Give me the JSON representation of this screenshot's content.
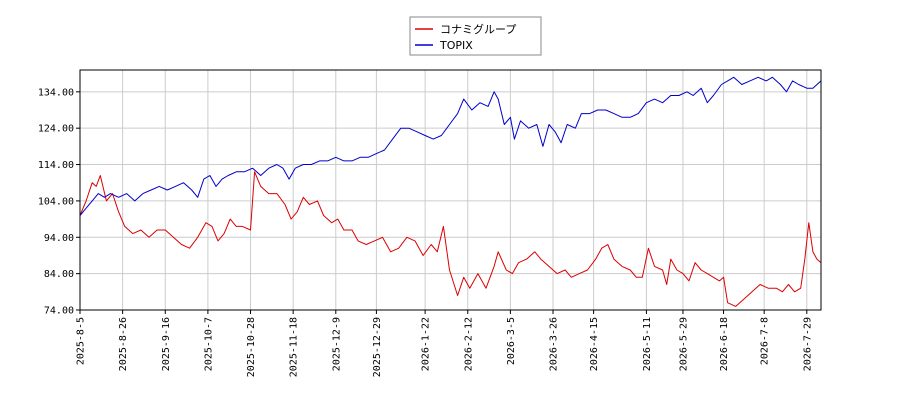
{
  "chart_data": {
    "type": "line",
    "title": "",
    "xlabel": "",
    "ylabel": "",
    "ylim": [
      74,
      140
    ],
    "yticks": [
      74,
      84,
      94,
      104,
      114,
      124,
      134
    ],
    "ytick_labels": [
      "74.00",
      "84.00",
      "94.00",
      "104.00",
      "114.00",
      "124.00",
      "134.00"
    ],
    "xticks": [
      "2025-8-5",
      "2025-8-26",
      "2025-9-16",
      "2025-10-7",
      "2025-10-28",
      "2025-11-18",
      "2025-12-9",
      "2025-12-29",
      "2026-1-22",
      "2026-2-12",
      "2026-3-5",
      "2026-3-26",
      "2026-4-15",
      "2026-5-11",
      "2026-5-29",
      "2026-6-18",
      "2026-7-8",
      "2026-7-29"
    ],
    "x_range": [
      "2025-8-5",
      "2026-8-5"
    ],
    "grid": true,
    "legend_position": "top-center",
    "series": [
      {
        "name": "コナミグループ",
        "color": "#dd0000",
        "points": [
          [
            "2025-8-5",
            100.0
          ],
          [
            "2025-8-8",
            104.0
          ],
          [
            "2025-8-11",
            109.0
          ],
          [
            "2025-8-13",
            108.0
          ],
          [
            "2025-8-15",
            111.0
          ],
          [
            "2025-8-18",
            104.0
          ],
          [
            "2025-8-21",
            106.0
          ],
          [
            "2025-8-24",
            101.0
          ],
          [
            "2025-8-27",
            97.0
          ],
          [
            "2025-8-31",
            95.0
          ],
          [
            "2025-9-4",
            96.0
          ],
          [
            "2025-9-8",
            94.0
          ],
          [
            "2025-9-12",
            96.0
          ],
          [
            "2025-9-16",
            96.0
          ],
          [
            "2025-9-20",
            94.0
          ],
          [
            "2025-9-24",
            92.0
          ],
          [
            "2025-9-28",
            91.0
          ],
          [
            "2025-10-2",
            94.0
          ],
          [
            "2025-10-6",
            98.0
          ],
          [
            "2025-10-9",
            97.0
          ],
          [
            "2025-10-12",
            93.0
          ],
          [
            "2025-10-15",
            95.0
          ],
          [
            "2025-10-18",
            99.0
          ],
          [
            "2025-10-21",
            97.0
          ],
          [
            "2025-10-24",
            97.0
          ],
          [
            "2025-10-28",
            96.0
          ],
          [
            "2025-10-30",
            112.0
          ],
          [
            "2025-11-2",
            108.0
          ],
          [
            "2025-11-6",
            106.0
          ],
          [
            "2025-11-10",
            106.0
          ],
          [
            "2025-11-14",
            103.0
          ],
          [
            "2025-11-17",
            99.0
          ],
          [
            "2025-11-20",
            101.0
          ],
          [
            "2025-11-23",
            105.0
          ],
          [
            "2025-11-26",
            103.0
          ],
          [
            "2025-11-30",
            104.0
          ],
          [
            "2025-12-3",
            100.0
          ],
          [
            "2025-12-7",
            98.0
          ],
          [
            "2025-12-10",
            99.0
          ],
          [
            "2025-12-13",
            96.0
          ],
          [
            "2025-12-17",
            96.0
          ],
          [
            "2025-12-20",
            93.0
          ],
          [
            "2025-12-24",
            92.0
          ],
          [
            "2025-12-28",
            93.0
          ],
          [
            "2026-1-1",
            94.0
          ],
          [
            "2026-1-5",
            90.0
          ],
          [
            "2026-1-9",
            91.0
          ],
          [
            "2026-1-13",
            94.0
          ],
          [
            "2026-1-17",
            93.0
          ],
          [
            "2026-1-21",
            89.0
          ],
          [
            "2026-1-25",
            92.0
          ],
          [
            "2026-1-28",
            90.0
          ],
          [
            "2026-1-31",
            97.0
          ],
          [
            "2026-2-3",
            85.0
          ],
          [
            "2026-2-7",
            78.0
          ],
          [
            "2026-2-10",
            83.0
          ],
          [
            "2026-2-13",
            80.0
          ],
          [
            "2026-2-17",
            84.0
          ],
          [
            "2026-2-21",
            80.0
          ],
          [
            "2026-2-25",
            86.0
          ],
          [
            "2026-2-27",
            90.0
          ],
          [
            "2026-3-3",
            85.0
          ],
          [
            "2026-3-6",
            84.0
          ],
          [
            "2026-3-9",
            87.0
          ],
          [
            "2026-3-13",
            88.0
          ],
          [
            "2026-3-17",
            90.0
          ],
          [
            "2026-3-20",
            88.0
          ],
          [
            "2026-3-24",
            86.0
          ],
          [
            "2026-3-28",
            84.0
          ],
          [
            "2026-4-1",
            85.0
          ],
          [
            "2026-4-4",
            83.0
          ],
          [
            "2026-4-8",
            84.0
          ],
          [
            "2026-4-12",
            85.0
          ],
          [
            "2026-4-16",
            88.0
          ],
          [
            "2026-4-19",
            91.0
          ],
          [
            "2026-4-22",
            92.0
          ],
          [
            "2026-4-25",
            88.0
          ],
          [
            "2026-4-29",
            86.0
          ],
          [
            "2026-5-3",
            85.0
          ],
          [
            "2026-5-6",
            83.0
          ],
          [
            "2026-5-9",
            83.0
          ],
          [
            "2026-5-12",
            91.0
          ],
          [
            "2026-5-15",
            86.0
          ],
          [
            "2026-5-19",
            85.0
          ],
          [
            "2026-5-21",
            81.0
          ],
          [
            "2026-5-23",
            88.0
          ],
          [
            "2026-5-26",
            85.0
          ],
          [
            "2026-5-29",
            84.0
          ],
          [
            "2026-6-1",
            82.0
          ],
          [
            "2026-6-4",
            87.0
          ],
          [
            "2026-6-7",
            85.0
          ],
          [
            "2026-6-10",
            84.0
          ],
          [
            "2026-6-13",
            83.0
          ],
          [
            "2026-6-16",
            82.0
          ],
          [
            "2026-6-18",
            83.0
          ],
          [
            "2026-6-20",
            76.0
          ],
          [
            "2026-6-24",
            75.0
          ],
          [
            "2026-6-28",
            77.0
          ],
          [
            "2026-7-2",
            79.0
          ],
          [
            "2026-7-6",
            81.0
          ],
          [
            "2026-7-10",
            80.0
          ],
          [
            "2026-7-14",
            80.0
          ],
          [
            "2026-7-17",
            79.0
          ],
          [
            "2026-7-20",
            81.0
          ],
          [
            "2026-7-23",
            79.0
          ],
          [
            "2026-7-26",
            80.0
          ],
          [
            "2026-7-28",
            88.0
          ],
          [
            "2026-7-30",
            98.0
          ],
          [
            "2026-8-1",
            90.0
          ],
          [
            "2026-8-3",
            88.0
          ],
          [
            "2026-8-5",
            87.0
          ]
        ]
      },
      {
        "name": "TOPIX",
        "color": "#0000cc",
        "points": [
          [
            "2025-8-5",
            100.0
          ],
          [
            "2025-8-8",
            102.0
          ],
          [
            "2025-8-11",
            104.0
          ],
          [
            "2025-8-14",
            106.0
          ],
          [
            "2025-8-17",
            105.0
          ],
          [
            "2025-8-20",
            106.0
          ],
          [
            "2025-8-24",
            105.0
          ],
          [
            "2025-8-28",
            106.0
          ],
          [
            "2025-9-1",
            104.0
          ],
          [
            "2025-9-5",
            106.0
          ],
          [
            "2025-9-9",
            107.0
          ],
          [
            "2025-9-13",
            108.0
          ],
          [
            "2025-9-17",
            107.0
          ],
          [
            "2025-9-21",
            108.0
          ],
          [
            "2025-9-25",
            109.0
          ],
          [
            "2025-9-29",
            107.0
          ],
          [
            "2025-10-2",
            105.0
          ],
          [
            "2025-10-5",
            110.0
          ],
          [
            "2025-10-8",
            111.0
          ],
          [
            "2025-10-11",
            108.0
          ],
          [
            "2025-10-14",
            110.0
          ],
          [
            "2025-10-17",
            111.0
          ],
          [
            "2025-10-21",
            112.0
          ],
          [
            "2025-10-25",
            112.0
          ],
          [
            "2025-10-29",
            113.0
          ],
          [
            "2025-11-2",
            111.0
          ],
          [
            "2025-11-6",
            113.0
          ],
          [
            "2025-11-10",
            114.0
          ],
          [
            "2025-11-13",
            113.0
          ],
          [
            "2025-11-16",
            110.0
          ],
          [
            "2025-11-19",
            113.0
          ],
          [
            "2025-11-23",
            114.0
          ],
          [
            "2025-11-27",
            114.0
          ],
          [
            "2025-12-1",
            115.0
          ],
          [
            "2025-12-5",
            115.0
          ],
          [
            "2025-12-9",
            116.0
          ],
          [
            "2025-12-13",
            115.0
          ],
          [
            "2025-12-17",
            115.0
          ],
          [
            "2025-12-21",
            116.0
          ],
          [
            "2025-12-25",
            116.0
          ],
          [
            "2025-12-29",
            117.0
          ],
          [
            "2026-1-2",
            118.0
          ],
          [
            "2026-1-6",
            121.0
          ],
          [
            "2026-1-10",
            124.0
          ],
          [
            "2026-1-14",
            124.0
          ],
          [
            "2026-1-18",
            123.0
          ],
          [
            "2026-1-22",
            122.0
          ],
          [
            "2026-1-26",
            121.0
          ],
          [
            "2026-1-30",
            122.0
          ],
          [
            "2026-2-3",
            125.0
          ],
          [
            "2026-2-7",
            128.0
          ],
          [
            "2026-2-10",
            132.0
          ],
          [
            "2026-2-14",
            129.0
          ],
          [
            "2026-2-18",
            131.0
          ],
          [
            "2026-2-22",
            130.0
          ],
          [
            "2026-2-25",
            134.0
          ],
          [
            "2026-2-27",
            132.0
          ],
          [
            "2026-3-2",
            125.0
          ],
          [
            "2026-3-5",
            127.0
          ],
          [
            "2026-3-7",
            121.0
          ],
          [
            "2026-3-10",
            126.0
          ],
          [
            "2026-3-14",
            124.0
          ],
          [
            "2026-3-18",
            125.0
          ],
          [
            "2026-3-21",
            119.0
          ],
          [
            "2026-3-24",
            125.0
          ],
          [
            "2026-3-27",
            123.0
          ],
          [
            "2026-3-30",
            120.0
          ],
          [
            "2026-4-2",
            125.0
          ],
          [
            "2026-4-6",
            124.0
          ],
          [
            "2026-4-9",
            128.0
          ],
          [
            "2026-4-13",
            128.0
          ],
          [
            "2026-4-17",
            129.0
          ],
          [
            "2026-4-21",
            129.0
          ],
          [
            "2026-4-25",
            128.0
          ],
          [
            "2026-4-29",
            127.0
          ],
          [
            "2026-5-3",
            127.0
          ],
          [
            "2026-5-7",
            128.0
          ],
          [
            "2026-5-11",
            131.0
          ],
          [
            "2026-5-15",
            132.0
          ],
          [
            "2026-5-19",
            131.0
          ],
          [
            "2026-5-23",
            133.0
          ],
          [
            "2026-5-27",
            133.0
          ],
          [
            "2026-5-31",
            134.0
          ],
          [
            "2026-6-3",
            133.0
          ],
          [
            "2026-6-7",
            135.0
          ],
          [
            "2026-6-10",
            131.0
          ],
          [
            "2026-6-13",
            133.0
          ],
          [
            "2026-6-17",
            136.0
          ],
          [
            "2026-6-20",
            137.0
          ],
          [
            "2026-6-23",
            138.0
          ],
          [
            "2026-6-27",
            136.0
          ],
          [
            "2026-7-1",
            137.0
          ],
          [
            "2026-7-5",
            138.0
          ],
          [
            "2026-7-9",
            137.0
          ],
          [
            "2026-7-12",
            138.0
          ],
          [
            "2026-7-16",
            136.0
          ],
          [
            "2026-7-19",
            134.0
          ],
          [
            "2026-7-22",
            137.0
          ],
          [
            "2026-7-25",
            136.0
          ],
          [
            "2026-7-29",
            135.0
          ],
          [
            "2026-8-1",
            135.0
          ],
          [
            "2026-8-5",
            137.0
          ]
        ]
      }
    ]
  }
}
